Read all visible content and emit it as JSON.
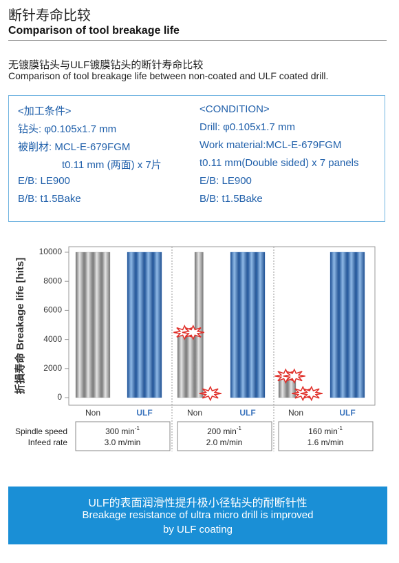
{
  "header": {
    "title_cn": "断针寿命比较",
    "title_en": "Comparison of tool breakage life"
  },
  "comparison": {
    "title_cn": "无镀膜钻头与ULF镀膜钻头的断针寿命比较",
    "title_en": "Comparison of tool breakage life between non-coated and ULF coated drill."
  },
  "condition": {
    "left": [
      "<加工条件>",
      "钻头: φ0.105x1.7 mm",
      "被削材: MCL-E-679FGM",
      "t0.11 mm (两面) x 7片",
      "E/B: LE900",
      "B/B: t1.5Bake"
    ],
    "right": [
      "<CONDITION>",
      "Drill: φ0.105x1.7 mm",
      "Work material:MCL-E-679FGM",
      "t0.11 mm(Double sided) x 7 panels",
      "E/B: LE900",
      "B/B: t1.5Bake"
    ]
  },
  "chart_data": {
    "type": "bar",
    "ylabel": "折損寿命 Breakage life [hits]",
    "categories": [
      "Non",
      "ULF",
      "Non",
      "ULF",
      "Non",
      "ULF"
    ],
    "values": [
      [
        10000,
        10000,
        10000,
        10000
      ],
      [
        10000,
        10000,
        10000,
        10000
      ],
      [
        4200,
        4200,
        10000,
        0
      ],
      [
        10000,
        10000,
        10000,
        10000
      ],
      [
        1200,
        1200,
        0,
        0
      ],
      [
        10000,
        10000,
        10000,
        10000
      ]
    ],
    "colors": [
      "#9a9a9a",
      "#3b74bd",
      "#9a9a9a",
      "#3b74bd",
      "#9a9a9a",
      "#3b74bd"
    ],
    "ylim": [
      0,
      10000
    ],
    "yticks": [
      0,
      2000,
      4000,
      6000,
      8000,
      10000
    ],
    "row_labels": [
      "Spindle speed",
      "Infeed rate"
    ],
    "groups": [
      {
        "speed": "300 min",
        "sup": "-1",
        "rate": "3.0 m/min"
      },
      {
        "speed": "200 min",
        "sup": "-1",
        "rate": "2.0 m/min"
      },
      {
        "speed": "160 min",
        "sup": "-1",
        "rate": "1.6 m/min"
      }
    ]
  },
  "note": {
    "cn": "ULF的表面润滑性提升极小径钻头的耐断针性",
    "en": [
      "Breakage resistance of ultra micro drill is improved",
      "by ULF coating"
    ]
  }
}
